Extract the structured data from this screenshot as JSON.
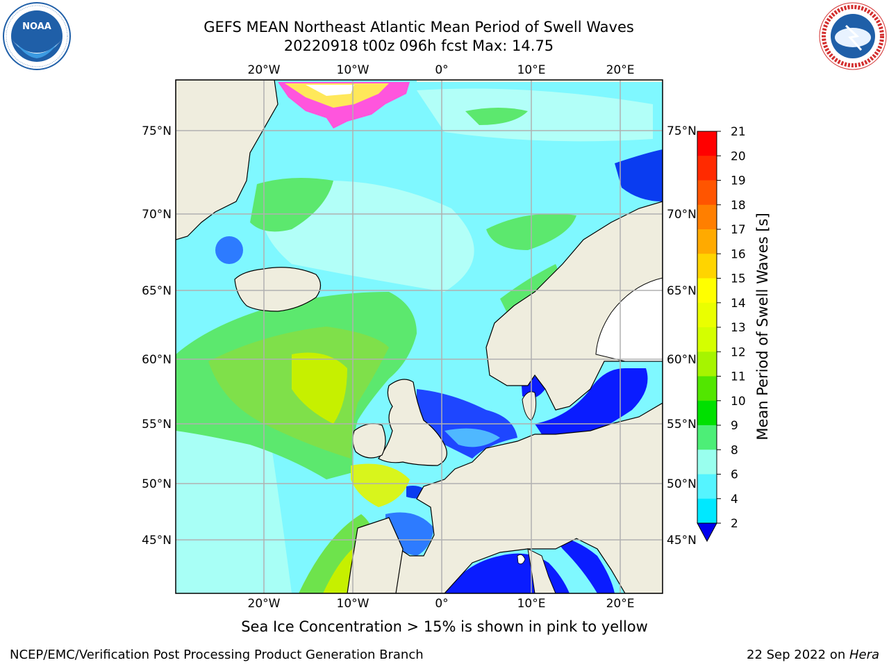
{
  "title": {
    "line1": "GEFS MEAN Northeast Atlantic Mean Period of Swell Waves",
    "line2": "20220918 t00z 096h fcst   Max: 14.75"
  },
  "caption": "Sea Ice Concentration > 15% is shown in pink to yellow",
  "footer": {
    "left": "NCEP/EMC/Verification Post Processing Product Generation Branch",
    "right_date": "22 Sep 2022 on ",
    "right_host": "Hera"
  },
  "logos": {
    "left": "NOAA",
    "right": "NATIONAL WEATHER SERVICE"
  },
  "map": {
    "lon_labels": [
      "20°W",
      "10°W",
      "0°",
      "10°E",
      "20°E"
    ],
    "lat_labels": [
      "75°N",
      "70°N",
      "65°N",
      "60°N",
      "55°N",
      "50°N",
      "45°N"
    ]
  },
  "colorbar": {
    "label": "Mean Period of Swell Waves [s]",
    "ticks": [
      "21",
      "20",
      "19",
      "18",
      "17",
      "16",
      "15",
      "14",
      "13",
      "12",
      "11",
      "10",
      "9",
      "8",
      "6",
      "4",
      "2"
    ],
    "colors": [
      "#ff0000",
      "#ff2a00",
      "#ff5500",
      "#ff7f00",
      "#ffaa00",
      "#ffd400",
      "#ffff00",
      "#eaff00",
      "#d4ff00",
      "#a6f400",
      "#52e600",
      "#00e000",
      "#4dee77",
      "#99ffee",
      "#55f4ff",
      "#00e8ff",
      "#0077ff"
    ],
    "under_color": "#0000ee"
  }
}
